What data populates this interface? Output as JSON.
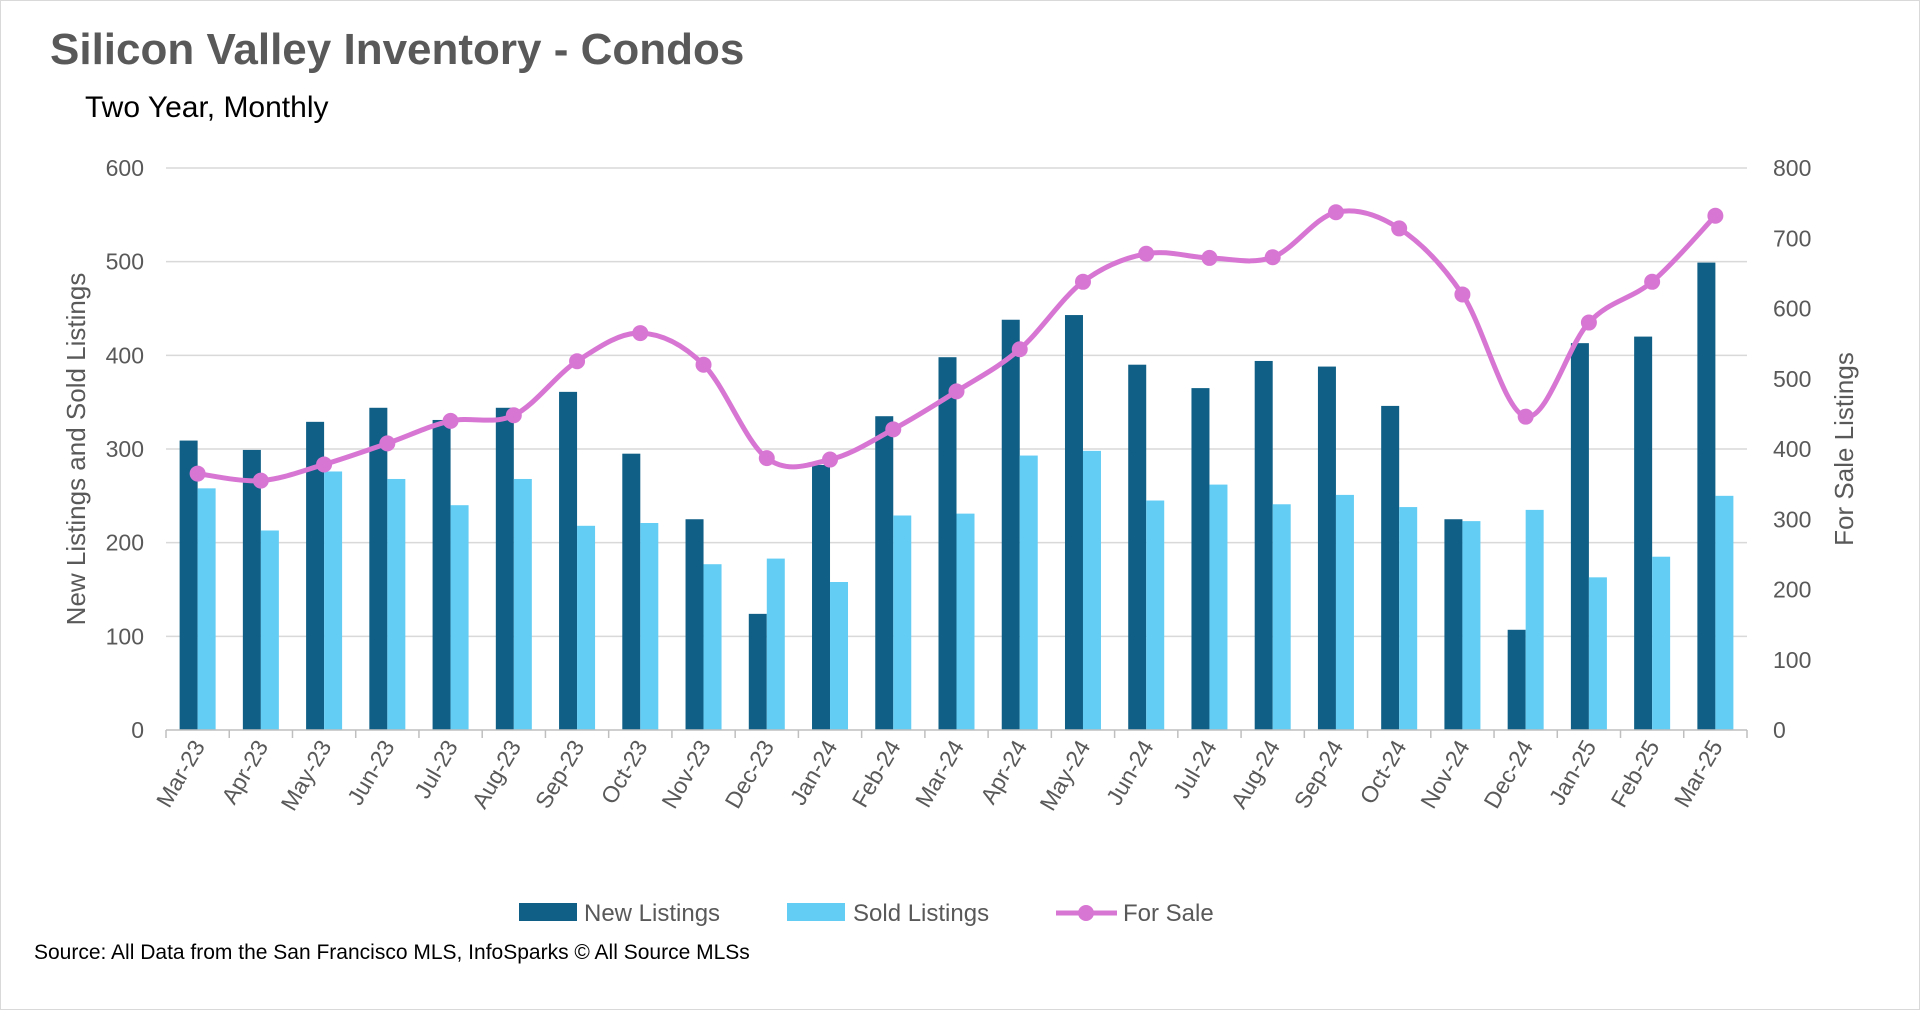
{
  "chart_data": {
    "type": "bar",
    "title": "Silicon Valley Inventory - Condos",
    "subtitle": "Two Year, Monthly",
    "categories": [
      "Mar-23",
      "Apr-23",
      "May-23",
      "Jun-23",
      "Jul-23",
      "Aug-23",
      "Sep-23",
      "Oct-23",
      "Nov-23",
      "Dec-23",
      "Jan-24",
      "Feb-24",
      "Mar-24",
      "Apr-24",
      "May-24",
      "Jun-24",
      "Jul-24",
      "Aug-24",
      "Sep-24",
      "Oct-24",
      "Nov-24",
      "Dec-24",
      "Jan-25",
      "Feb-25",
      "Mar-25"
    ],
    "ylabel": "New Listings and Sold Listings",
    "y2label": "For Sale Listings",
    "ylim": [
      0,
      600
    ],
    "y2lim": [
      0,
      800
    ],
    "yticks": [
      "0",
      "100",
      "200",
      "300",
      "400",
      "500",
      "600"
    ],
    "y2ticks": [
      "0",
      "100",
      "200",
      "300",
      "400",
      "500",
      "600",
      "700",
      "800"
    ],
    "grid": true,
    "legend_position": "bottom",
    "series": [
      {
        "name": "New Listings",
        "type": "bar",
        "axis": "left",
        "color": "#0f5f86",
        "values": [
          309,
          299,
          329,
          344,
          331,
          344,
          361,
          295,
          225,
          124,
          283,
          335,
          398,
          438,
          443,
          390,
          365,
          394,
          388,
          346,
          225,
          107,
          413,
          420,
          499
        ]
      },
      {
        "name": "Sold Listings",
        "type": "bar",
        "axis": "left",
        "color": "#63cdf4",
        "values": [
          258,
          213,
          276,
          268,
          240,
          268,
          218,
          221,
          177,
          183,
          158,
          229,
          231,
          293,
          298,
          245,
          262,
          241,
          251,
          238,
          223,
          235,
          163,
          185,
          250
        ]
      },
      {
        "name": "For Sale",
        "type": "line",
        "axis": "right",
        "color": "#d876d3",
        "values": [
          365,
          355,
          378,
          408,
          440,
          448,
          525,
          565,
          520,
          387,
          385,
          428,
          482,
          542,
          638,
          678,
          672,
          673,
          737,
          714,
          620,
          446,
          580,
          638,
          732
        ]
      }
    ]
  },
  "source": "Source: All Data from the San Francisco MLS, InfoSparks © All Source MLSs"
}
